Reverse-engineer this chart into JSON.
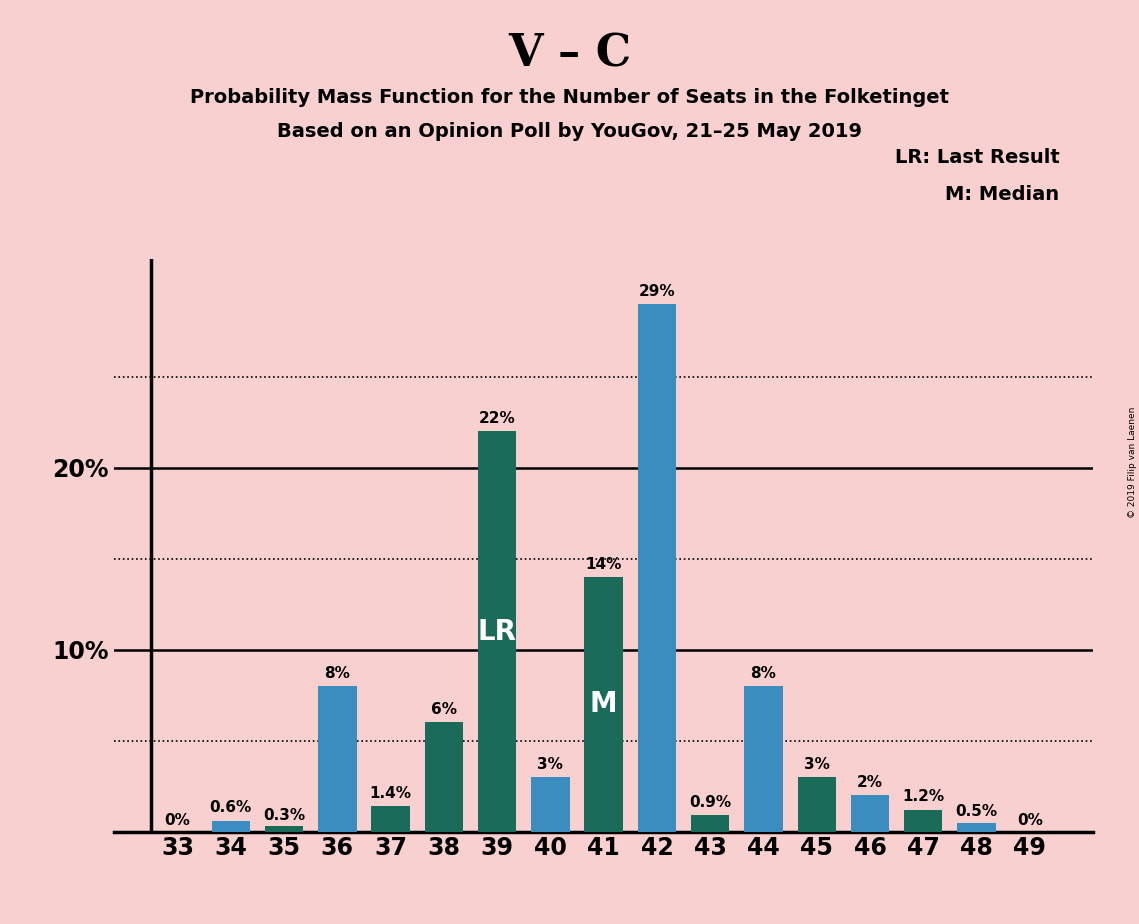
{
  "title": "V – C",
  "subtitle1": "Probability Mass Function for the Number of Seats in the Folketinget",
  "subtitle2": "Based on an Opinion Poll by YouGov, 21–25 May 2019",
  "copyright": "© 2019 Filip van Laenen",
  "categories": [
    33,
    34,
    35,
    36,
    37,
    38,
    39,
    40,
    41,
    42,
    43,
    44,
    45,
    46,
    47,
    48,
    49
  ],
  "values": [
    0.0,
    0.6,
    0.3,
    8.0,
    1.4,
    6.0,
    22.0,
    3.0,
    14.0,
    29.0,
    0.9,
    8.0,
    3.0,
    2.0,
    1.2,
    0.5,
    0.0
  ],
  "labels": [
    "0%",
    "0.6%",
    "0.3%",
    "8%",
    "1.4%",
    "6%",
    "22%",
    "3%",
    "14%",
    "29%",
    "0.9%",
    "8%",
    "3%",
    "2%",
    "1.2%",
    "0.5%",
    "0%"
  ],
  "bar_colors": [
    "#3b8dbf",
    "#3b8dbf",
    "#1a6b5a",
    "#3b8dbf",
    "#1a6b5a",
    "#1a6b5a",
    "#1a6b5a",
    "#3b8dbf",
    "#1a6b5a",
    "#3b8dbf",
    "#1a6b5a",
    "#3b8dbf",
    "#1a6b5a",
    "#3b8dbf",
    "#1a6b5a",
    "#3b8dbf",
    "#3b8dbf"
  ],
  "background_color": "#f9d0d0",
  "lr_index": 6,
  "median_index": 8,
  "lr_label": "LR",
  "median_label": "M",
  "legend_lr": "LR: Last Result",
  "legend_m": "M: Median",
  "ylim_max": 31.5,
  "solid_lines": [
    10,
    20
  ],
  "dotted_lines": [
    5,
    15,
    25
  ],
  "label_fontsize": 11,
  "tick_fontsize": 17,
  "title_fontsize": 32,
  "subtitle_fontsize": 14,
  "legend_fontsize": 14
}
